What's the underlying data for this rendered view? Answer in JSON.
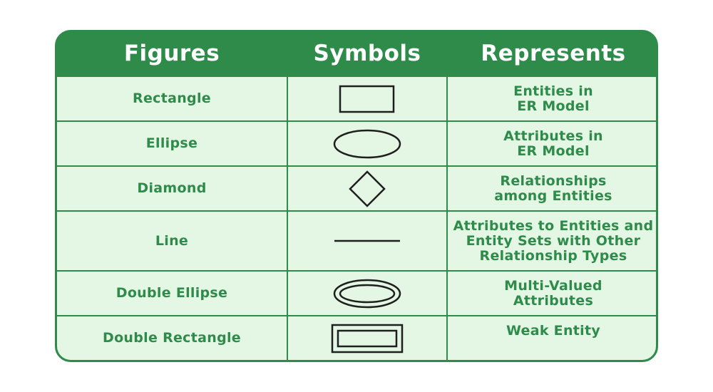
{
  "headers": [
    "Figures",
    "Symbols",
    "Represents"
  ],
  "rows": [
    {
      "figure": "Rectangle",
      "symbol": "rectangle-icon",
      "represents": [
        "Entities in",
        "ER Model"
      ]
    },
    {
      "figure": "Ellipse",
      "symbol": "ellipse-icon",
      "represents": [
        "Attributes in",
        "ER Model"
      ]
    },
    {
      "figure": "Diamond",
      "symbol": "diamond-icon",
      "represents": [
        "Relationships",
        "among Entities"
      ]
    },
    {
      "figure": "Line",
      "symbol": "line-icon",
      "represents": [
        "Attributes to Entities and",
        "Entity Sets with Other",
        "Relationship Types"
      ]
    },
    {
      "figure": "Double Ellipse",
      "symbol": "double-ellipse-icon",
      "represents": [
        "Multi-Valued",
        "Attributes"
      ]
    },
    {
      "figure": "Double Rectangle",
      "symbol": "double-rectangle-icon",
      "represents": [
        "Weak Entity"
      ]
    }
  ],
  "colors": {
    "header_bg": "#2e8b4a",
    "cell_bg": "#e4f6e4",
    "text": "#2e8b4a",
    "symbol_stroke": "#1f1f1f"
  }
}
